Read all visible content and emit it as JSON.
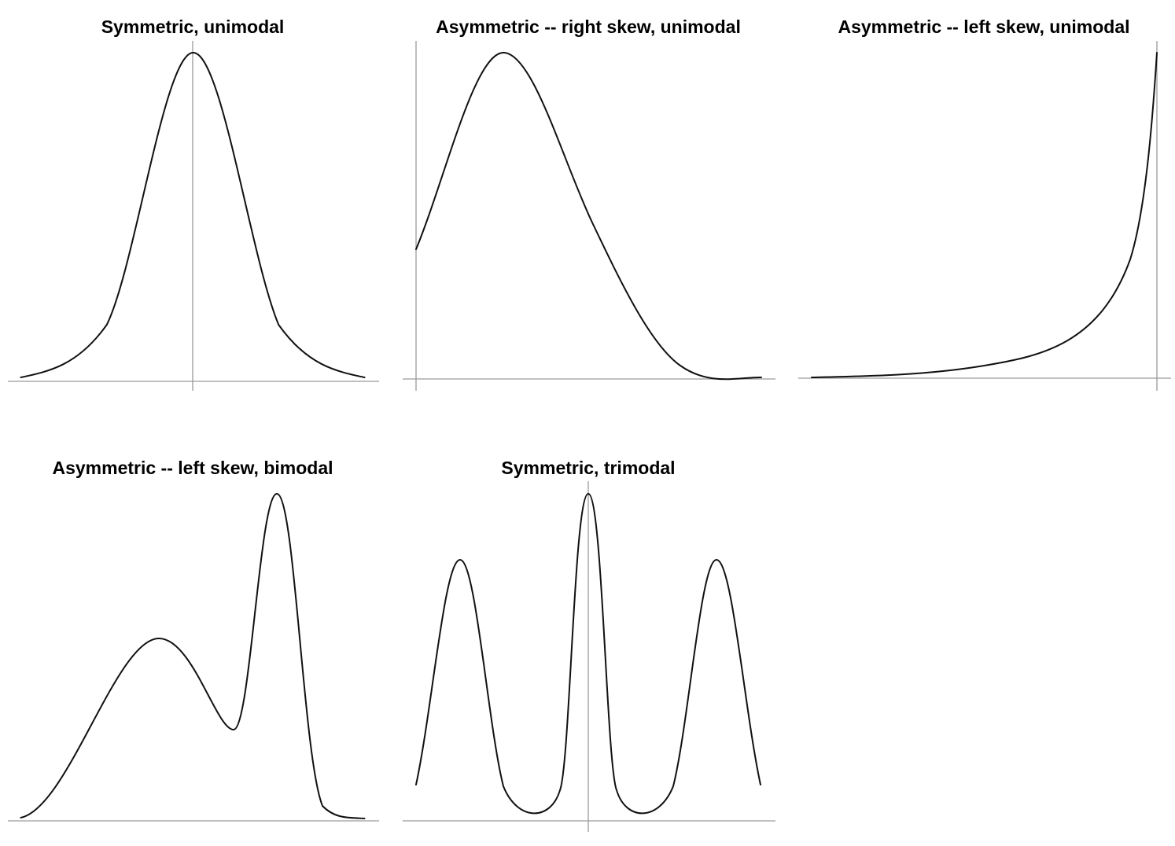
{
  "chart_data": [
    {
      "type": "line",
      "title": "Symmetric, unimodal",
      "xlabel": "",
      "ylabel": "",
      "grid": false,
      "x": [
        -3.0,
        -2.5,
        -2.0,
        -1.5,
        -1.0,
        -0.5,
        0.0,
        0.5,
        1.0,
        1.5,
        2.0,
        2.5,
        3.0
      ],
      "series": [
        {
          "values": [
            0.011,
            0.044,
            0.135,
            0.325,
            0.607,
            0.882,
            1.0,
            0.882,
            0.607,
            0.325,
            0.135,
            0.044,
            0.011
          ]
        }
      ]
    },
    {
      "type": "line",
      "title": "Asymmetric -- right skew, unimodal",
      "xlabel": "",
      "ylabel": "",
      "grid": false,
      "x": [
        0.0,
        0.25,
        0.5,
        0.75,
        1.0,
        1.25,
        1.5,
        1.75,
        2.0,
        2.5,
        3.0,
        3.5,
        4.0
      ],
      "series": [
        {
          "values": [
            0.4,
            0.75,
            0.97,
            0.99,
            0.85,
            0.63,
            0.43,
            0.27,
            0.16,
            0.054,
            0.018,
            0.006,
            0.002
          ]
        }
      ]
    },
    {
      "type": "line",
      "title": "Asymmetric -- left skew, unimodal",
      "xlabel": "",
      "ylabel": "",
      "grid": false,
      "x": [
        -6.0,
        -5.0,
        -4.0,
        -3.0,
        -2.5,
        -2.0,
        -1.5,
        -1.0,
        -0.75,
        -0.5,
        -0.25,
        0.0
      ],
      "series": [
        {
          "values": [
            0.002,
            0.007,
            0.018,
            0.05,
            0.082,
            0.135,
            0.223,
            0.368,
            0.472,
            0.607,
            0.779,
            1.0
          ]
        }
      ]
    },
    {
      "type": "line",
      "title": "Asymmetric -- left skew, bimodal",
      "xlabel": "",
      "ylabel": "",
      "grid": false,
      "x": [
        -3.0,
        -2.5,
        -2.0,
        -1.5,
        -1.0,
        -0.6,
        -0.2,
        0.2,
        0.5,
        0.8,
        1.1,
        1.4,
        1.6,
        2.0,
        2.5,
        3.0
      ],
      "series": [
        {
          "values": [
            0.02,
            0.06,
            0.16,
            0.33,
            0.51,
            0.56,
            0.48,
            0.32,
            0.29,
            0.6,
            0.99,
            0.7,
            0.33,
            0.04,
            0.01,
            0.005
          ]
        }
      ]
    },
    {
      "type": "line",
      "title": "Symmetric, trimodal",
      "xlabel": "",
      "ylabel": "",
      "grid": false,
      "x": [
        -3.0,
        -2.5,
        -2.25,
        -2.0,
        -1.5,
        -1.0,
        -0.5,
        -0.25,
        0.0,
        0.25,
        0.5,
        1.0,
        1.5,
        2.0,
        2.25,
        2.5,
        3.0
      ],
      "series": [
        {
          "values": [
            0.11,
            0.64,
            0.8,
            0.72,
            0.17,
            0.01,
            0.21,
            0.74,
            1.0,
            0.74,
            0.21,
            0.01,
            0.17,
            0.72,
            0.8,
            0.64,
            0.11
          ]
        }
      ]
    }
  ]
}
